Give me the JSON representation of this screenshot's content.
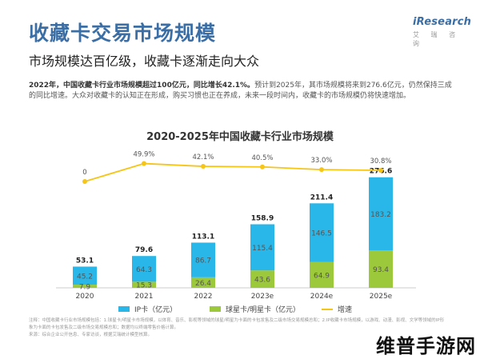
{
  "header": {
    "title": "收藏卡交易市场规模",
    "subtitle": "市场规模达百亿级，收藏卡逐渐走向大众",
    "logo_text": "iResearch",
    "logo_sub": "艾 瑞 咨 询"
  },
  "summary": {
    "bold": "2022年，中国收藏卡行业市场规模超过100亿元，同比增长42.1%。",
    "rest": "预计到2025年，其市场规模将来到276.6亿元，仍然保持三成的同比增速。大众对收藏卡的认知正在形成，购买习惯也正在养成，未来一段时间内，收藏卡的市场规模仍将快速增加。"
  },
  "chart_data": {
    "type": "bar",
    "title": "2020-2025年中国收藏卡行业市场规模",
    "categories": [
      "2020",
      "2021",
      "2022",
      "2023e",
      "2024e",
      "2025e"
    ],
    "series": [
      {
        "name": "IP卡（亿元）",
        "values": [
          45.2,
          64.3,
          86.7,
          115.4,
          146.5,
          183.2
        ],
        "color": "#29b6e8"
      },
      {
        "name": "球星卡/明星卡（亿元）",
        "values": [
          7.9,
          15.3,
          26.4,
          43.6,
          64.9,
          93.4
        ],
        "color": "#9cc83b"
      }
    ],
    "totals": [
      53.1,
      79.6,
      113.1,
      158.9,
      211.4,
      276.6
    ],
    "growth": {
      "name": "增速",
      "labels": [
        "0",
        "49.9%",
        "42.1%",
        "40.5%",
        "33.0%",
        "30.8%"
      ],
      "values": [
        0,
        49.9,
        42.1,
        40.5,
        33.0,
        30.8
      ],
      "color": "#f5c518"
    },
    "stacked": true,
    "ylim": [
      0,
      300
    ],
    "grid": false,
    "legend": "bottom"
  },
  "footnote": {
    "lines": [
      "注释：中国收藏卡行业市场规模包括：1.球星卡/明星卡市场规模，以体育、音乐、影视等领域的球星/明星为卡面的卡包发售及二级市场交易规模总和；2.IP收藏卡市场规模，以游戏、动漫、影视、文学等领域的IP形象为卡面的卡包发售及二级市场交易规模总和；数据均以终端零售价格计算。",
      "来源：综合企业公开信息、专家访谈，根据艾瑞统计模型核算。"
    ]
  },
  "watermark": {
    "text": "维普手游网"
  }
}
